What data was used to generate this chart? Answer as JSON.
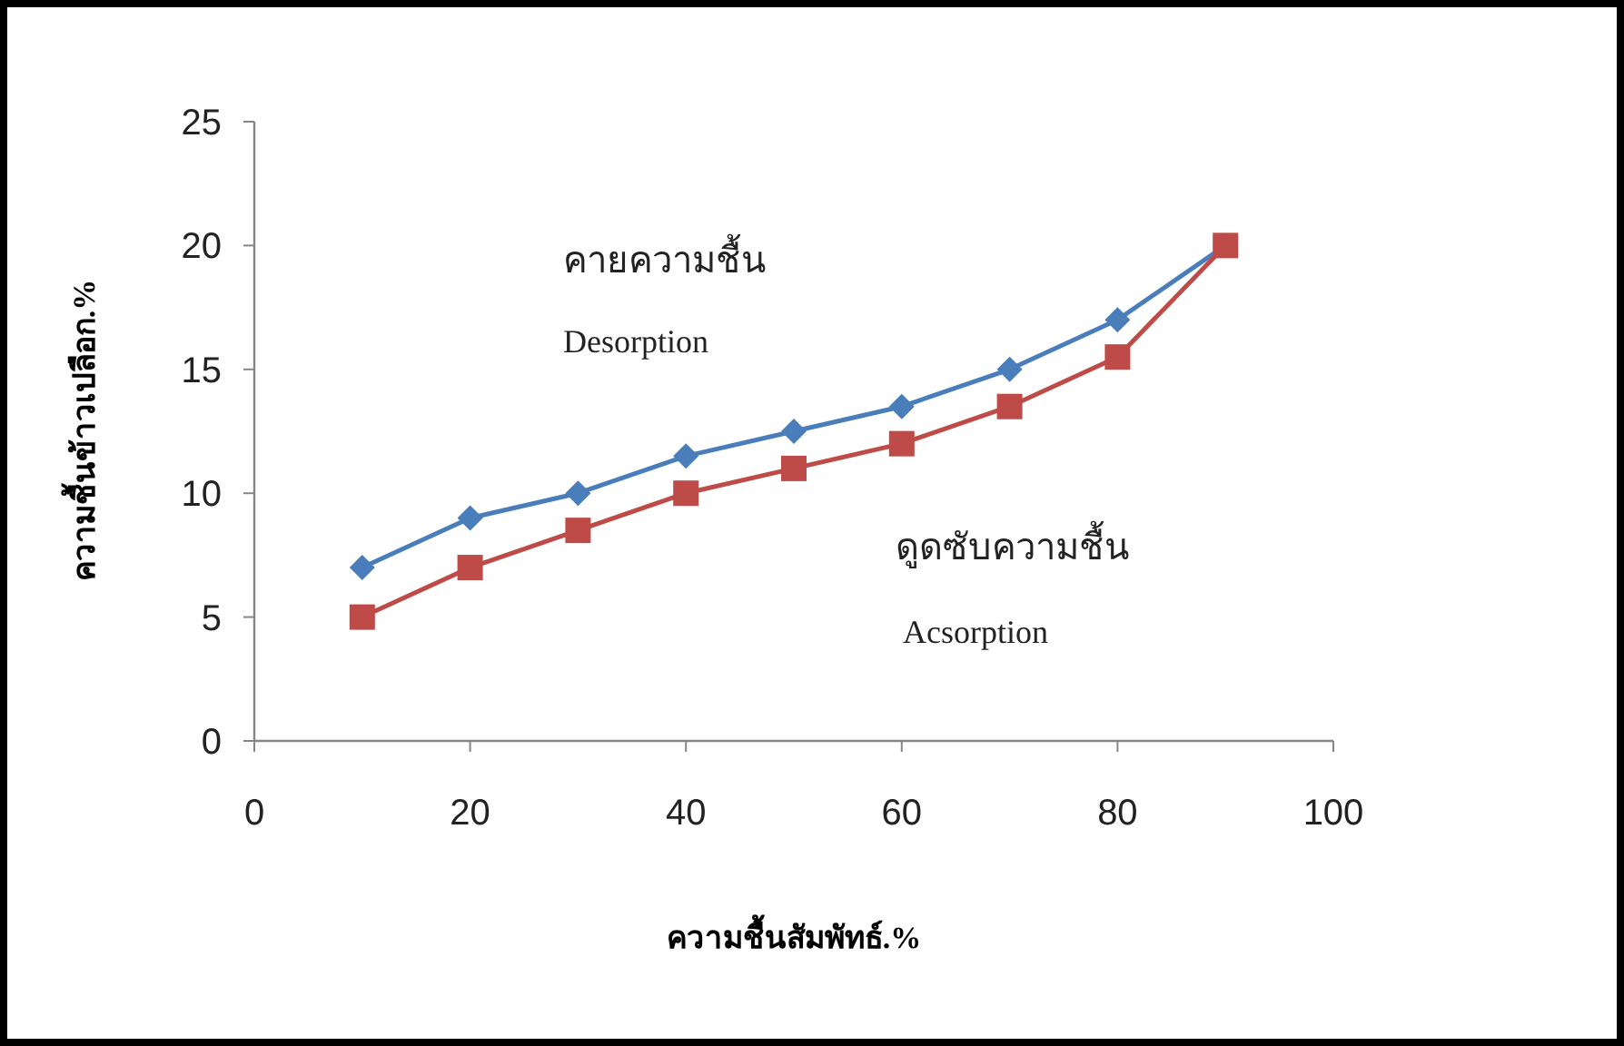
{
  "chart_data": {
    "type": "line",
    "xlabel": "ความชื้นสัมพัทธ์.%",
    "ylabel": "ความชื้นข้าวเปลือก.%",
    "x": [
      10,
      20,
      30,
      40,
      50,
      60,
      70,
      80,
      90
    ],
    "series": [
      {
        "color": "#4a7ebb",
        "marker": "diamond",
        "values": [
          7,
          9,
          10,
          11.5,
          12.5,
          13.5,
          15,
          17,
          20
        ]
      },
      {
        "color": "#be4b48",
        "marker": "square",
        "values": [
          5,
          7,
          8.5,
          10,
          11,
          12,
          13.5,
          15.5,
          20
        ]
      }
    ],
    "annotations": [
      "คายความชื้น",
      "Desorption",
      "ดูดซับความชื้น",
      "Acsorption"
    ],
    "xlim": [
      0,
      100
    ],
    "xticks": [
      0,
      20,
      40,
      60,
      80,
      100
    ],
    "ylim": [
      0,
      25
    ],
    "yticks": [
      0,
      5,
      10,
      15,
      20,
      25
    ],
    "grid": false
  }
}
